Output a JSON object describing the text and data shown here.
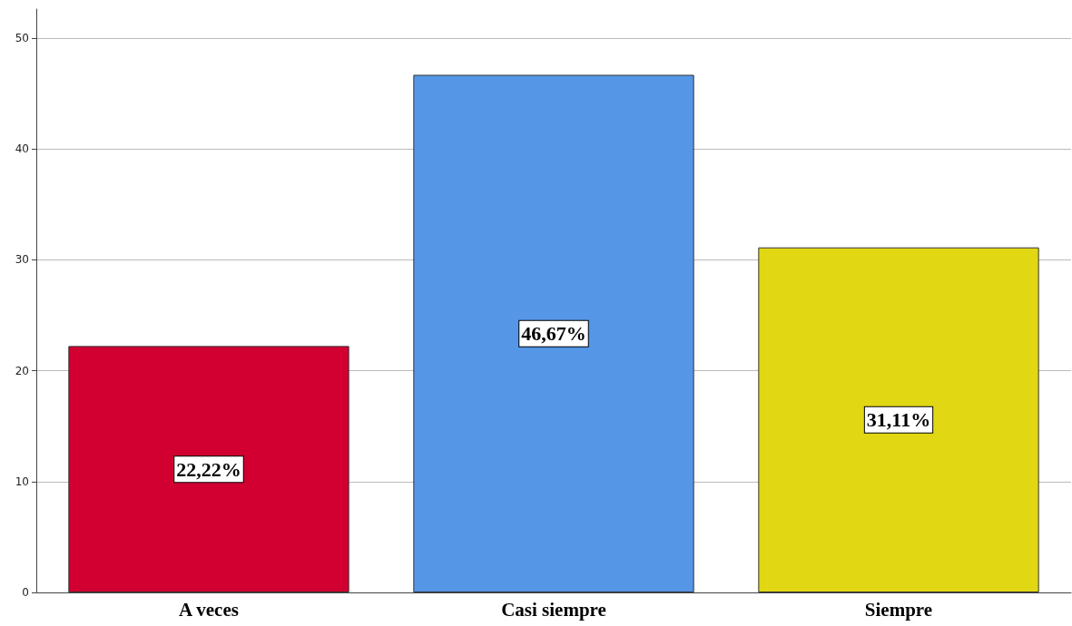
{
  "chart_data": {
    "type": "bar",
    "categories": [
      "A veces",
      "Casi siempre",
      "Siempre"
    ],
    "values": [
      22.22,
      46.67,
      31.11
    ],
    "colors": [
      "#d20030",
      "#5596e6",
      "#e1d712"
    ],
    "value_labels": [
      "22,22%",
      "46,67%",
      "31,11%"
    ],
    "ylim": [
      0,
      52.6
    ],
    "yticks": [
      0,
      10,
      20,
      30,
      40,
      50
    ],
    "grid": "y"
  }
}
